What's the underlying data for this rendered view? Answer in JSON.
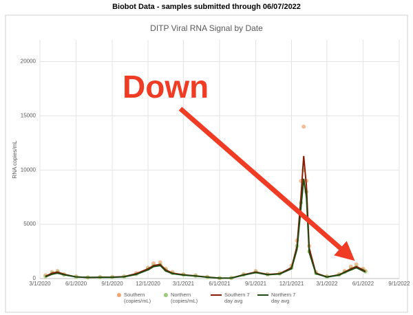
{
  "page_title": "Biobot Data - samples submitted through 06/07/2022",
  "chart_data": {
    "type": "line",
    "title": "DITP Viral RNA Signal by Date",
    "y_label": "RNA copies/mL",
    "annotation": "Down",
    "x": [
      "2020-03-15",
      "2020-04-01",
      "2020-04-15",
      "2020-05-01",
      "2020-06-01",
      "2020-07-01",
      "2020-08-01",
      "2020-09-01",
      "2020-10-01",
      "2020-11-01",
      "2020-12-01",
      "2020-12-15",
      "2021-01-01",
      "2021-01-15",
      "2021-02-01",
      "2021-03-01",
      "2021-04-01",
      "2021-05-01",
      "2021-06-01",
      "2021-07-01",
      "2021-08-01",
      "2021-09-01",
      "2021-10-01",
      "2021-11-01",
      "2021-12-01",
      "2021-12-15",
      "2021-12-25",
      "2022-01-01",
      "2022-01-08",
      "2022-01-15",
      "2022-02-01",
      "2022-03-01",
      "2022-04-01",
      "2022-04-15",
      "2022-05-01",
      "2022-05-15",
      "2022-06-01",
      "2022-06-07"
    ],
    "series": [
      {
        "name": "Southern (copies/mL)",
        "style": "scatter",
        "color": "#f2a46f",
        "values": [
          300,
          600,
          700,
          400,
          200,
          100,
          150,
          150,
          200,
          500,
          1000,
          1400,
          1500,
          900,
          600,
          400,
          300,
          150,
          50,
          60,
          400,
          700,
          400,
          500,
          1200,
          3500,
          9000,
          14000,
          9000,
          3000,
          600,
          200,
          400,
          700,
          1100,
          1300,
          900,
          700
        ]
      },
      {
        "name": "Northern (copies/mL)",
        "style": "scatter",
        "color": "#9ccc7a",
        "values": [
          200,
          500,
          600,
          350,
          150,
          100,
          120,
          120,
          180,
          400,
          900,
          1200,
          1300,
          800,
          500,
          350,
          250,
          130,
          40,
          50,
          350,
          600,
          380,
          450,
          1000,
          3000,
          7000,
          10000,
          8000,
          2500,
          500,
          150,
          350,
          600,
          900,
          1100,
          800,
          650
        ]
      },
      {
        "name": "Southern 7 day avg",
        "style": "line",
        "color": "#8b1a00",
        "values": [
          200,
          500,
          600,
          400,
          150,
          100,
          120,
          130,
          180,
          450,
          900,
          1200,
          1300,
          800,
          500,
          350,
          250,
          130,
          40,
          50,
          350,
          600,
          380,
          450,
          1000,
          3000,
          7500,
          11300,
          8500,
          2800,
          500,
          150,
          350,
          600,
          900,
          1100,
          800,
          650
        ]
      },
      {
        "name": "Northern 7 day avg",
        "style": "line",
        "color": "#1f4a12",
        "values": [
          150,
          400,
          500,
          350,
          150,
          100,
          110,
          110,
          160,
          380,
          800,
          1100,
          1200,
          700,
          450,
          320,
          230,
          120,
          40,
          50,
          320,
          550,
          350,
          420,
          900,
          2700,
          6500,
          9200,
          7500,
          2400,
          450,
          140,
          320,
          550,
          800,
          1000,
          700,
          600
        ]
      }
    ],
    "xlim": [
      "2020-03-01",
      "2022-09-01"
    ],
    "xticks": [
      {
        "value": "2020-03-01",
        "label": "3/1/2020"
      },
      {
        "value": "2020-06-01",
        "label": "6/1/2020"
      },
      {
        "value": "2020-09-01",
        "label": "9/1/2020"
      },
      {
        "value": "2020-12-01",
        "label": "12/1/2020"
      },
      {
        "value": "2021-03-01",
        "label": "3/1/2021"
      },
      {
        "value": "2021-06-01",
        "label": "6/1/2021"
      },
      {
        "value": "2021-09-01",
        "label": "9/1/2021"
      },
      {
        "value": "2021-12-01",
        "label": "12/1/2021"
      },
      {
        "value": "2022-03-01",
        "label": "3/1/2022"
      },
      {
        "value": "2022-06-01",
        "label": "6/1/2022"
      },
      {
        "value": "2022-09-01",
        "label": "9/1/2022"
      }
    ],
    "ylim": [
      0,
      22000
    ],
    "yticks": [
      0,
      5000,
      10000,
      15000,
      20000
    ],
    "grid": true,
    "legend": "bottom"
  }
}
